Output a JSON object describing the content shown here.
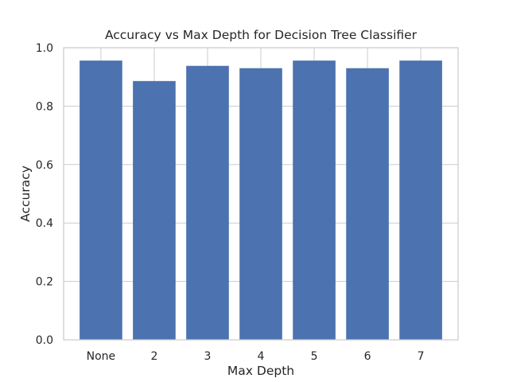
{
  "chart_data": {
    "type": "bar",
    "title": "Accuracy vs Max Depth for Decision Tree Classifier",
    "xlabel": "Max Depth",
    "ylabel": "Accuracy",
    "categories": [
      "None",
      "2",
      "3",
      "4",
      "5",
      "6",
      "7"
    ],
    "values": [
      0.956,
      0.886,
      0.938,
      0.93,
      0.956,
      0.93,
      0.956
    ],
    "ylim": [
      0,
      1.0
    ],
    "yticks": [
      0.0,
      0.2,
      0.4,
      0.6,
      0.8,
      1.0
    ],
    "ytick_labels": [
      "0.0",
      "0.2",
      "0.4",
      "0.6",
      "0.8",
      "1.0"
    ],
    "grid": true,
    "colors": {
      "bar": "#4c72b0",
      "grid": "#cccccc",
      "frame": "#cccccc",
      "text": "#262626"
    }
  }
}
